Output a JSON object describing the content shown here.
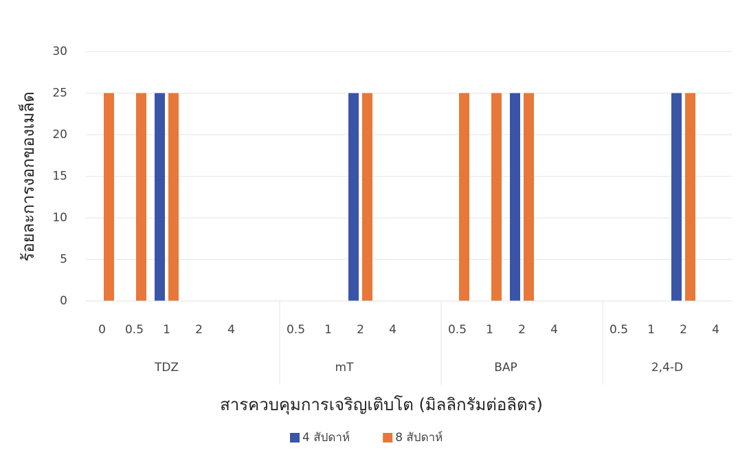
{
  "chart_data": {
    "type": "bar",
    "groups": [
      {
        "name": "TDZ",
        "categories": [
          "0",
          "0.5",
          "1",
          "2",
          "4"
        ]
      },
      {
        "name": "mT",
        "categories": [
          "0.5",
          "1",
          "2",
          "4"
        ]
      },
      {
        "name": "BAP",
        "categories": [
          "0.5",
          "1",
          "2",
          "4"
        ]
      },
      {
        "name": "2,4-D",
        "categories": [
          "0.5",
          "1",
          "2",
          "4"
        ]
      }
    ],
    "series": [
      {
        "name": "4 สัปดาห์",
        "color": "#3a54a8",
        "values": [
          0,
          0,
          25,
          0,
          0,
          0,
          0,
          25,
          0,
          0,
          0,
          25,
          0,
          0,
          0,
          25,
          0
        ]
      },
      {
        "name": "8 สัปดาห์",
        "color": "#e8773a",
        "values": [
          25,
          25,
          25,
          0,
          0,
          0,
          0,
          25,
          0,
          25,
          25,
          25,
          0,
          0,
          0,
          25,
          0
        ]
      }
    ],
    "ylim": [
      0,
      30
    ],
    "yticks": [
      0,
      5,
      10,
      15,
      20,
      25,
      30
    ],
    "y_label": "ร้อยละการงอกของเมล็ด",
    "x_label": "สารควบคุมการเจริญเติบโต (มิลลิกรัมต่อลิตร)",
    "grid": true,
    "legend": "bottom"
  }
}
